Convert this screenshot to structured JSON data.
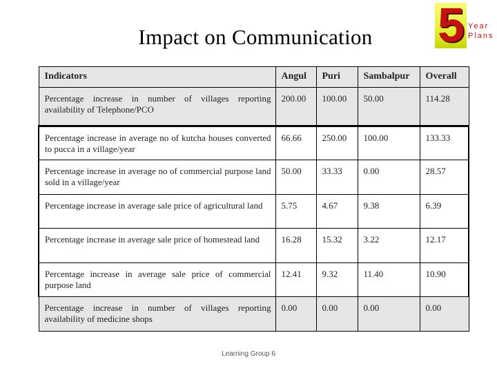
{
  "slide": {
    "title": "Impact on Communication",
    "footer": "Learning Group 6"
  },
  "logo": {
    "number": "5",
    "line1": "Year",
    "line2": "Plans",
    "colors": {
      "box": "#e7f23a",
      "text": "#c11412"
    }
  },
  "table": {
    "headers": [
      "Indicators",
      "Angul",
      "Puri",
      "Sambalpur",
      "Overall"
    ],
    "rows": [
      {
        "indicator": "Percentage increase in number of villages reporting availability of Telephone/PCO",
        "values": [
          "200.00",
          "100.00",
          "50.00",
          "114.28"
        ]
      },
      {
        "indicator": "Percentage increase in average no of kutcha houses converted to pucca in a village/year",
        "values": [
          "66.66",
          "250.00",
          "100.00",
          "133.33"
        ]
      },
      {
        "indicator": "Percentage increase in average no of commercial purpose land sold in a village/year",
        "values": [
          "50.00",
          "33.33",
          "0.00",
          "28.57"
        ]
      },
      {
        "indicator": "Percentage increase in average sale price of agricultural land",
        "values": [
          "5.75",
          "4.67",
          "9.38",
          "6.39"
        ]
      },
      {
        "indicator": "Percentage increase in average sale price of homestead land",
        "values": [
          "16.28",
          "15.32",
          "3.22",
          "12.17"
        ]
      },
      {
        "indicator": "Percentage increase in average sale price of commercial purpose land",
        "values": [
          "12.41",
          "9.32",
          "11.40",
          "10.90"
        ]
      },
      {
        "indicator": "Percentage increase in number of villages reporting availability of medicine shops",
        "values": [
          "0.00",
          "0.00",
          "0.00",
          "0.00"
        ]
      }
    ]
  }
}
